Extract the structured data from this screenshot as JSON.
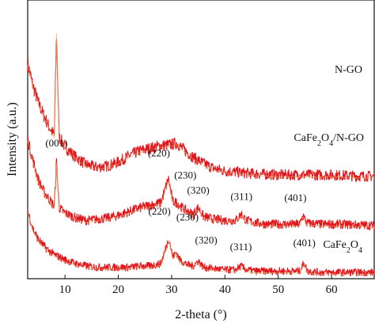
{
  "chart_data": {
    "type": "line",
    "xlabel": "2-theta (°)",
    "ylabel": "Intensity (a.u.)",
    "xlim": [
      3,
      68
    ],
    "x_ticks": [
      "10",
      "20",
      "30",
      "40",
      "50",
      "60"
    ],
    "y_ticks": "none",
    "grid": false,
    "legend": "none",
    "colors": {
      "pattern": "#e3161b",
      "fit": "#e8a864",
      "axis": "#111111"
    },
    "series": [
      {
        "name": "N-GO",
        "label_parts": [
          {
            "text": "N-GO"
          }
        ],
        "points": [
          [
            3,
            17.0
          ],
          [
            4,
            15.2
          ],
          [
            5,
            13.9
          ],
          [
            6,
            12.9
          ],
          [
            7,
            12.0
          ],
          [
            8,
            11.3
          ],
          [
            8.4,
            19.5
          ],
          [
            8.9,
            11.2
          ],
          [
            10,
            10.4
          ],
          [
            12,
            9.6
          ],
          [
            14,
            9.0
          ],
          [
            16,
            8.8
          ],
          [
            18,
            8.9
          ],
          [
            20,
            9.2
          ],
          [
            22,
            9.7
          ],
          [
            24,
            10.1
          ],
          [
            26,
            10.3
          ],
          [
            28,
            10.5
          ],
          [
            30,
            10.6
          ],
          [
            31,
            10.7
          ],
          [
            32,
            10.3
          ],
          [
            34,
            9.6
          ],
          [
            36,
            9.1
          ],
          [
            38,
            8.7
          ],
          [
            40,
            8.5
          ],
          [
            45,
            8.3
          ],
          [
            50,
            8.2
          ],
          [
            55,
            8.2
          ],
          [
            60,
            8.2
          ],
          [
            65,
            8.1
          ],
          [
            68,
            8.1
          ]
        ],
        "peaks": []
      },
      {
        "name": "CaFe2O4/N-GO",
        "label_parts": [
          {
            "text": "CaFe"
          },
          {
            "text": "2",
            "sub": true
          },
          {
            "text": "O"
          },
          {
            "text": "4",
            "sub": true
          },
          {
            "text": "/N-GO"
          }
        ],
        "points": [
          [
            3,
            11.0
          ],
          [
            4,
            9.3
          ],
          [
            5,
            7.8
          ],
          [
            6,
            6.9
          ],
          [
            7,
            6.3
          ],
          [
            8,
            5.7
          ],
          [
            8.4,
            9.3
          ],
          [
            8.9,
            5.6
          ],
          [
            10,
            5.2
          ],
          [
            12,
            4.8
          ],
          [
            14,
            4.6
          ],
          [
            16,
            4.7
          ],
          [
            18,
            4.8
          ],
          [
            20,
            5.0
          ],
          [
            22,
            5.3
          ],
          [
            24,
            5.6
          ],
          [
            26,
            5.8
          ],
          [
            28,
            6.0
          ],
          [
            29.4,
            7.9
          ],
          [
            30.2,
            6.1
          ],
          [
            31,
            6.0
          ],
          [
            32,
            5.6
          ],
          [
            33,
            5.3
          ],
          [
            34,
            5.1
          ],
          [
            35,
            5.6
          ],
          [
            36,
            4.9
          ],
          [
            38,
            4.7
          ],
          [
            40,
            4.6
          ],
          [
            42,
            4.6
          ],
          [
            43.1,
            5.1
          ],
          [
            44,
            4.6
          ],
          [
            46,
            4.4
          ],
          [
            48,
            4.3
          ],
          [
            50,
            4.3
          ],
          [
            52,
            4.3
          ],
          [
            54,
            4.3
          ],
          [
            54.7,
            5.0
          ],
          [
            55.3,
            4.4
          ],
          [
            58,
            4.3
          ],
          [
            62,
            4.3
          ],
          [
            68,
            4.2
          ]
        ],
        "peaks": [
          {
            "label": "(001)",
            "x": 8.4
          },
          {
            "label": "(220)",
            "x": 29.4
          },
          {
            "label": "(230)",
            "x": 30.8
          },
          {
            "label": "(320)",
            "x": 35.0
          },
          {
            "label": "(311)",
            "x": 43.1
          },
          {
            "label": "(401)",
            "x": 54.7
          }
        ]
      },
      {
        "name": "CaFe2O4",
        "label_parts": [
          {
            "text": "CaFe"
          },
          {
            "text": "2",
            "sub": true
          },
          {
            "text": "O"
          },
          {
            "text": "4",
            "sub": true
          }
        ],
        "points": [
          [
            3,
            5.4
          ],
          [
            4,
            3.9
          ],
          [
            5,
            3.1
          ],
          [
            6,
            2.6
          ],
          [
            7,
            2.2
          ],
          [
            8,
            1.9
          ],
          [
            10,
            1.5
          ],
          [
            12,
            1.2
          ],
          [
            14,
            1.0
          ],
          [
            16,
            0.9
          ],
          [
            18,
            0.9
          ],
          [
            20,
            0.9
          ],
          [
            22,
            0.9
          ],
          [
            24,
            1.0
          ],
          [
            26,
            1.0
          ],
          [
            28,
            1.2
          ],
          [
            29.5,
            3.2
          ],
          [
            30.2,
            1.7
          ],
          [
            30.9,
            2.1
          ],
          [
            31.5,
            1.5
          ],
          [
            33,
            1.1
          ],
          [
            34,
            1.0
          ],
          [
            35,
            1.4
          ],
          [
            36,
            0.9
          ],
          [
            38,
            0.8
          ],
          [
            40,
            0.7
          ],
          [
            42,
            0.7
          ],
          [
            43.0,
            1.0
          ],
          [
            44,
            0.7
          ],
          [
            46,
            0.6
          ],
          [
            48,
            0.6
          ],
          [
            50,
            0.6
          ],
          [
            52,
            0.6
          ],
          [
            54,
            0.6
          ],
          [
            54.9,
            1.3
          ],
          [
            55.4,
            0.6
          ],
          [
            58,
            0.5
          ],
          [
            62,
            0.5
          ],
          [
            68,
            0.5
          ]
        ],
        "peaks": [
          {
            "label": "(220)",
            "x": 29.5
          },
          {
            "label": "(230)",
            "x": 30.9
          },
          {
            "label": "(320)",
            "x": 35.0
          },
          {
            "label": "(311)",
            "x": 43.0
          },
          {
            "label": "(401)",
            "x": 54.9
          }
        ]
      }
    ]
  }
}
